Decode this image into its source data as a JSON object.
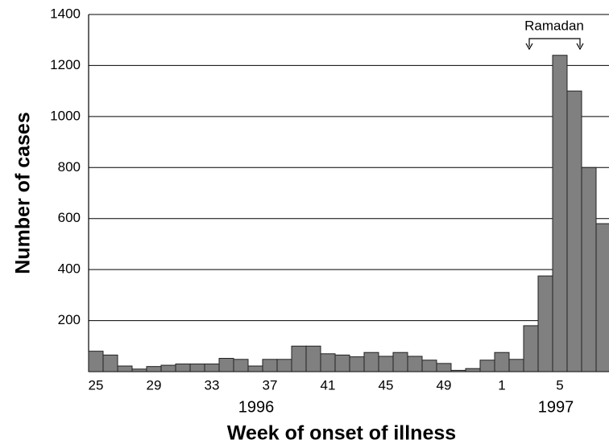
{
  "chart_data": {
    "type": "bar",
    "x_label": "Week of onset of illness",
    "y_label": "Number of cases",
    "annotation": "Ramadan",
    "year_labels": [
      "1996",
      "1997"
    ],
    "categories": [
      "25",
      null,
      null,
      null,
      "29",
      null,
      null,
      null,
      "33",
      null,
      null,
      null,
      "37",
      null,
      null,
      null,
      "41",
      null,
      null,
      null,
      "45",
      null,
      null,
      null,
      "49",
      null,
      null,
      null,
      "1",
      null,
      null,
      null,
      "5",
      null,
      null,
      null
    ],
    "values": [
      80,
      65,
      22,
      10,
      20,
      25,
      30,
      30,
      30,
      52,
      48,
      22,
      48,
      48,
      100,
      100,
      70,
      65,
      58,
      75,
      60,
      75,
      60,
      45,
      32,
      5,
      12,
      45,
      75,
      48,
      180,
      375,
      1240,
      1100,
      800,
      580
    ],
    "color": "#808080",
    "ylim": [
      0,
      1400
    ],
    "yticks": [
      200,
      400,
      600,
      800,
      1000,
      1200,
      1400
    ],
    "grid": true
  }
}
